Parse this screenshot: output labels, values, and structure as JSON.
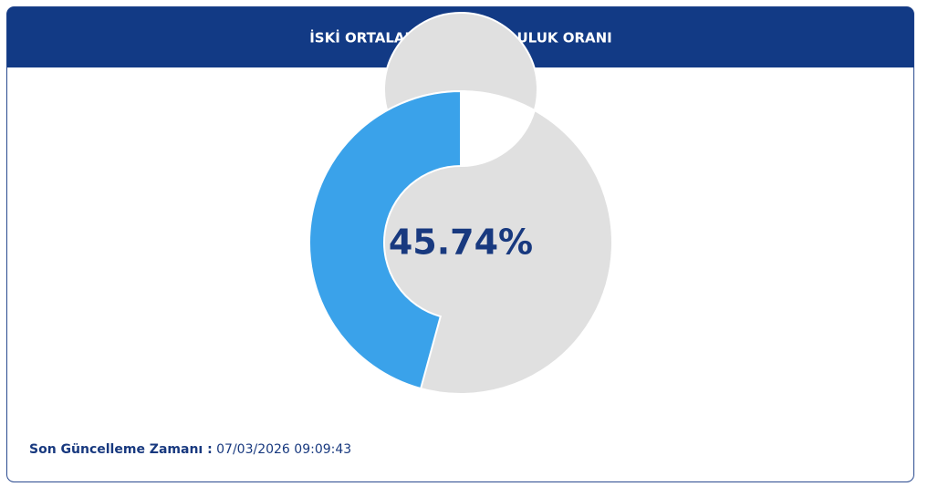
{
  "chart_data": {
    "type": "donut",
    "title": "İSKİ ORTALAMA BARAJ DOLULUK ORANI",
    "values": [
      45.74
    ],
    "value_labels": [
      "45.74%"
    ],
    "color": "#3aa2ea",
    "track_color": "#e0e0e0"
  },
  "footer": {
    "label": "Son Güncelleme Zamanı :",
    "value": "07/03/2026 09:09:43"
  }
}
